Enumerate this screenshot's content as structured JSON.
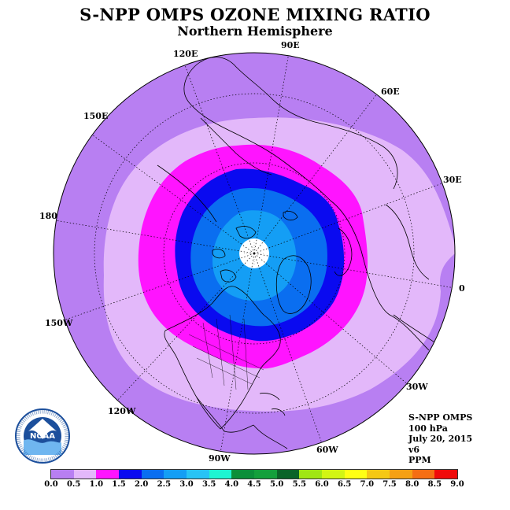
{
  "title": "S-NPP OMPS OZONE MIXING RATIO",
  "subtitle": "Northern Hemisphere",
  "longitude_labels": [
    "90E",
    "60E",
    "30E",
    "0",
    "30W",
    "60W",
    "90W",
    "120W",
    "150W",
    "180",
    "150E",
    "120E"
  ],
  "info": {
    "instrument": "S-NPP OMPS",
    "level": "100 hPa",
    "date": "July 20, 2015",
    "version": "v6",
    "units": "PPM"
  },
  "logo_text": "NOAA",
  "colorbar": {
    "ticks": [
      "0.0",
      "0.5",
      "1.0",
      "1.5",
      "2.0",
      "2.5",
      "3.0",
      "3.5",
      "4.0",
      "4.5",
      "5.0",
      "5.5",
      "6.0",
      "6.5",
      "7.0",
      "7.5",
      "8.0",
      "8.5",
      "9.0"
    ],
    "colors": [
      "#b87ff2",
      "#e3b8fa",
      "#ff14ff",
      "#0a0af0",
      "#0a6ef0",
      "#149ef5",
      "#28c3f5",
      "#1ef5d2",
      "#0c8f3a",
      "#14a03c",
      "#0a6428",
      "#a0e614",
      "#d2f514",
      "#ffff14",
      "#f5c814",
      "#f5a014",
      "#f56e14",
      "#f00a0a",
      "#8c5a3c"
    ]
  },
  "map_data": {
    "levels_ppm": [
      0.5,
      1.0,
      1.5,
      2.0,
      2.5
    ],
    "fill_colors": [
      "#b87ff2",
      "#e3b8fa",
      "#ff14ff",
      "#0a0af0",
      "#0a6ef0",
      "#149ef5",
      "#ffffff"
    ]
  }
}
